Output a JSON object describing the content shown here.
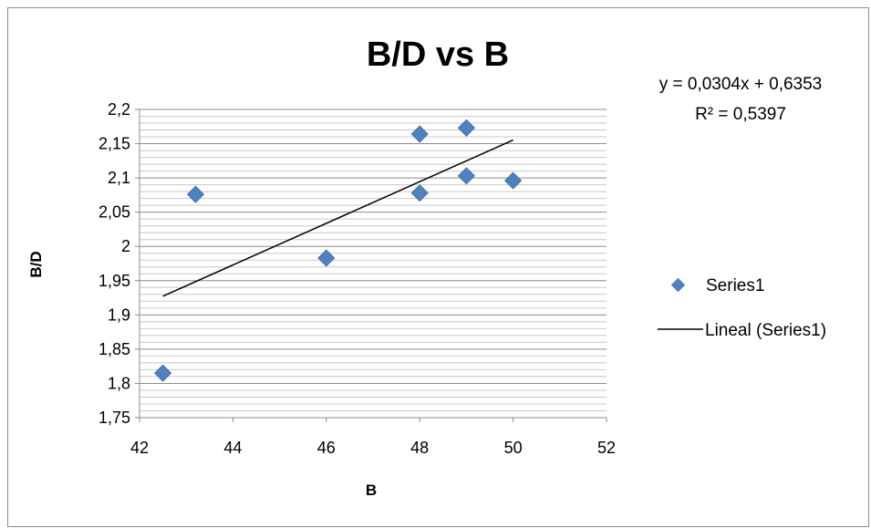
{
  "chart_data": {
    "type": "scatter",
    "title": "B/D vs B",
    "xlabel": "B",
    "ylabel": "B/D",
    "xlim": [
      42,
      52
    ],
    "ylim": [
      1.75,
      2.2
    ],
    "x_ticks": [
      "42",
      "44",
      "46",
      "48",
      "50",
      "52"
    ],
    "y_ticks": [
      "2,2",
      "2,15",
      "2,1",
      "2,05",
      "2",
      "1,95",
      "1,9",
      "1,85",
      "1,8",
      "1,75"
    ],
    "grid": true,
    "legend_position": "right",
    "series": [
      {
        "name": "Series1",
        "color": "#4f81bd",
        "marker": "diamond",
        "points": [
          {
            "x": 42.5,
            "y": 1.815
          },
          {
            "x": 43.2,
            "y": 2.076
          },
          {
            "x": 46.0,
            "y": 1.983
          },
          {
            "x": 48.0,
            "y": 2.164
          },
          {
            "x": 48.0,
            "y": 2.078
          },
          {
            "x": 49.0,
            "y": 2.173
          },
          {
            "x": 49.0,
            "y": 2.103
          },
          {
            "x": 50.0,
            "y": 2.096
          }
        ]
      }
    ],
    "trendline": {
      "name": "Lineal (Series1)",
      "type": "linear",
      "slope": 0.0304,
      "intercept": 0.6353,
      "x_range": [
        42.5,
        50
      ],
      "color": "#000000",
      "equation_label": "y = 0,0304x + 0,6353",
      "r2_label": "R² = 0,5397"
    }
  }
}
